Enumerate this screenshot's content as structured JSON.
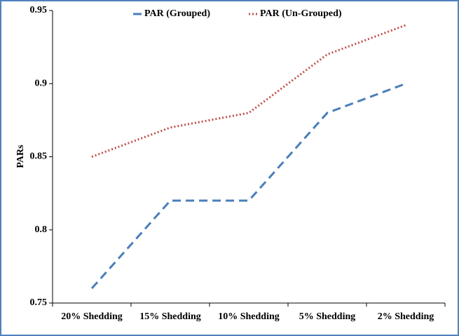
{
  "chart_data": {
    "type": "line",
    "y_label": "PARs",
    "categories": [
      "20% Shedding",
      "15% Shedding",
      "10% Shedding",
      "5% Shedding",
      "2% Shedding"
    ],
    "series": [
      {
        "name": "PAR (Grouped)",
        "color": "#4a7ebb",
        "dash": "dashed",
        "values": [
          0.76,
          0.82,
          0.82,
          0.88,
          0.9
        ]
      },
      {
        "name": "PAR (Un-Grouped)",
        "color": "#c0504d",
        "dash": "dotted",
        "values": [
          0.85,
          0.87,
          0.88,
          0.92,
          0.94
        ]
      }
    ],
    "ylim": [
      0.75,
      0.95
    ],
    "yticks": [
      0.75,
      0.8,
      0.85,
      0.9,
      0.95
    ],
    "legend": "top"
  }
}
